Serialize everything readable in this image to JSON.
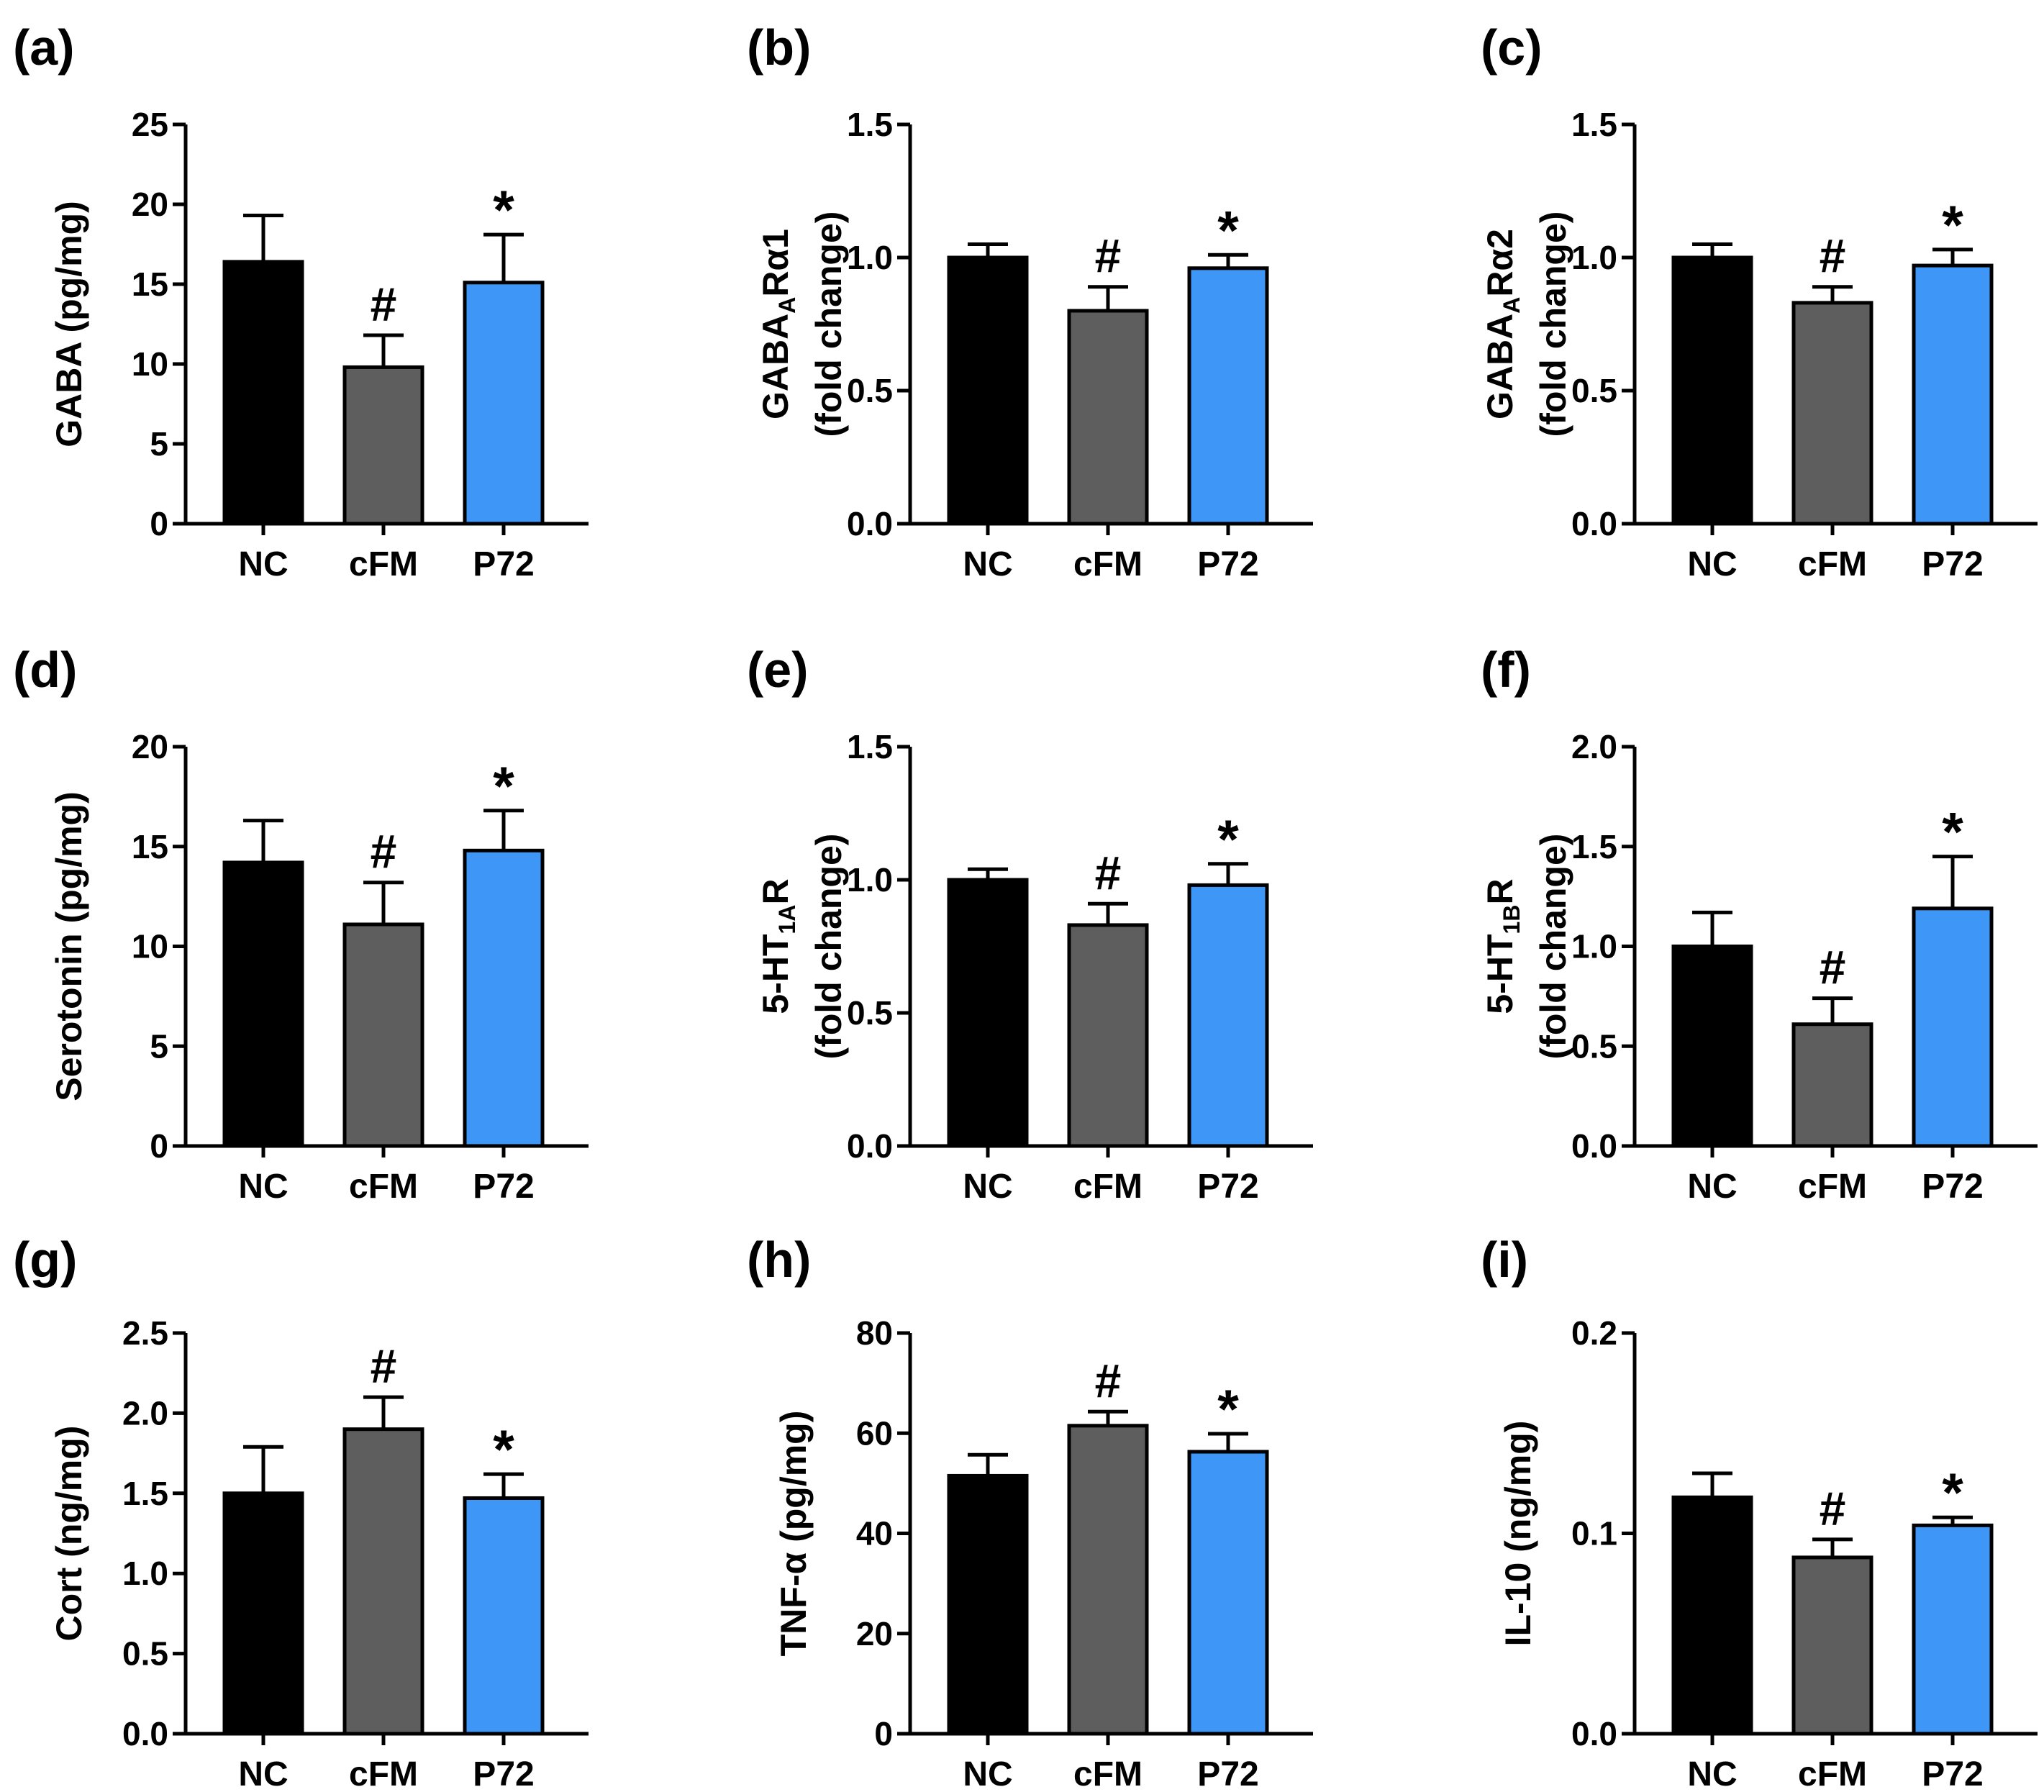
{
  "chart_data": [
    {
      "type": "bar",
      "panel": "(a)",
      "ylabel": [
        {
          "t": "GABA (pg/mg)"
        }
      ],
      "categories": [
        "NC",
        "cFM",
        "P72"
      ],
      "values": [
        16.4,
        9.8,
        15.1
      ],
      "errors": [
        2.9,
        2.0,
        3.0
      ],
      "significance": [
        "",
        "#",
        "*"
      ],
      "ylim": [
        0,
        25
      ],
      "yticks": [
        0,
        5,
        10,
        15,
        20,
        25
      ],
      "ytick_labels": [
        "0",
        "5",
        "10",
        "15",
        "20",
        "25"
      ],
      "colors": [
        "#000000",
        "#5e5e5e",
        "#3e96f7"
      ]
    },
    {
      "type": "bar",
      "panel": "(b)",
      "ylabel": [
        {
          "t": "GABA"
        },
        {
          "t": "A",
          "sub": true
        },
        {
          "t": "Rα1"
        }
      ],
      "ylabel2": "(fold change)",
      "categories": [
        "NC",
        "cFM",
        "P72"
      ],
      "values": [
        1.0,
        0.8,
        0.96
      ],
      "errors": [
        0.05,
        0.09,
        0.05
      ],
      "significance": [
        "",
        "#",
        "*"
      ],
      "ylim": [
        0,
        1.5
      ],
      "yticks": [
        0,
        0.5,
        1.0,
        1.5
      ],
      "ytick_labels": [
        "0.0",
        "0.5",
        "1.0",
        "1.5"
      ],
      "colors": [
        "#000000",
        "#5e5e5e",
        "#3e96f7"
      ]
    },
    {
      "type": "bar",
      "panel": "(c)",
      "ylabel": [
        {
          "t": "GABA"
        },
        {
          "t": "A",
          "sub": true
        },
        {
          "t": "Rα2"
        }
      ],
      "ylabel2": "(fold change)",
      "categories": [
        "NC",
        "cFM",
        "P72"
      ],
      "values": [
        1.0,
        0.83,
        0.97
      ],
      "errors": [
        0.05,
        0.06,
        0.06
      ],
      "significance": [
        "",
        "#",
        "*"
      ],
      "ylim": [
        0,
        1.5
      ],
      "yticks": [
        0,
        0.5,
        1.0,
        1.5
      ],
      "ytick_labels": [
        "0.0",
        "0.5",
        "1.0",
        "1.5"
      ],
      "colors": [
        "#000000",
        "#5e5e5e",
        "#3e96f7"
      ]
    },
    {
      "type": "bar",
      "panel": "(d)",
      "ylabel": [
        {
          "t": "Serotonin (pg/mg)"
        }
      ],
      "categories": [
        "NC",
        "cFM",
        "P72"
      ],
      "values": [
        14.2,
        11.1,
        14.8
      ],
      "errors": [
        2.1,
        2.1,
        2.0
      ],
      "significance": [
        "",
        "#",
        "*"
      ],
      "ylim": [
        0,
        20
      ],
      "yticks": [
        0,
        5,
        10,
        15,
        20
      ],
      "ytick_labels": [
        "0",
        "5",
        "10",
        "15",
        "20"
      ],
      "colors": [
        "#000000",
        "#5e5e5e",
        "#3e96f7"
      ]
    },
    {
      "type": "bar",
      "panel": "(e)",
      "ylabel": [
        {
          "t": "5-HT"
        },
        {
          "t": "1A",
          "sub": true
        },
        {
          "t": "R"
        }
      ],
      "ylabel2": "(fold change)",
      "categories": [
        "NC",
        "cFM",
        "P72"
      ],
      "values": [
        1.0,
        0.83,
        0.98
      ],
      "errors": [
        0.04,
        0.08,
        0.08
      ],
      "significance": [
        "",
        "#",
        "*"
      ],
      "ylim": [
        0,
        1.5
      ],
      "yticks": [
        0,
        0.5,
        1.0,
        1.5
      ],
      "ytick_labels": [
        "0.0",
        "0.5",
        "1.0",
        "1.5"
      ],
      "colors": [
        "#000000",
        "#5e5e5e",
        "#3e96f7"
      ]
    },
    {
      "type": "bar",
      "panel": "(f)",
      "ylabel": [
        {
          "t": "5-HT"
        },
        {
          "t": "1B",
          "sub": true
        },
        {
          "t": "R"
        }
      ],
      "ylabel2": "(fold change)",
      "categories": [
        "NC",
        "cFM",
        "P72"
      ],
      "values": [
        1.0,
        0.61,
        1.19
      ],
      "errors": [
        0.17,
        0.13,
        0.26
      ],
      "significance": [
        "",
        "#",
        "*"
      ],
      "ylim": [
        0,
        2.0
      ],
      "yticks": [
        0,
        0.5,
        1.0,
        1.5,
        2.0
      ],
      "ytick_labels": [
        "0.0",
        "0.5",
        "1.0",
        "1.5",
        "2.0"
      ],
      "colors": [
        "#000000",
        "#5e5e5e",
        "#3e96f7"
      ]
    },
    {
      "type": "bar",
      "panel": "(g)",
      "ylabel": [
        {
          "t": "Cort (ng/mg)"
        }
      ],
      "categories": [
        "NC",
        "cFM",
        "P72"
      ],
      "values": [
        1.5,
        1.9,
        1.47
      ],
      "errors": [
        0.29,
        0.2,
        0.15
      ],
      "significance": [
        "",
        "#",
        "*"
      ],
      "ylim": [
        0,
        2.5
      ],
      "yticks": [
        0,
        0.5,
        1.0,
        1.5,
        2.0,
        2.5
      ],
      "ytick_labels": [
        "0.0",
        "0.5",
        "1.0",
        "1.5",
        "2.0",
        "2.5"
      ],
      "colors": [
        "#000000",
        "#5e5e5e",
        "#3e96f7"
      ]
    },
    {
      "type": "bar",
      "panel": "(h)",
      "ylabel": [
        {
          "t": "TNF-α (pg/mg)"
        }
      ],
      "categories": [
        "NC",
        "cFM",
        "P72"
      ],
      "values": [
        51.5,
        61.5,
        56.3
      ],
      "errors": [
        4.2,
        2.8,
        3.6
      ],
      "significance": [
        "",
        "#",
        "*"
      ],
      "ylim": [
        0,
        80
      ],
      "yticks": [
        0,
        20,
        40,
        60,
        80
      ],
      "ytick_labels": [
        "0",
        "20",
        "40",
        "60",
        "80"
      ],
      "colors": [
        "#000000",
        "#5e5e5e",
        "#3e96f7"
      ]
    },
    {
      "type": "bar",
      "panel": "(i)",
      "ylabel": [
        {
          "t": "IL-10 (ng/mg)"
        }
      ],
      "categories": [
        "NC",
        "cFM",
        "P72"
      ],
      "values": [
        0.118,
        0.088,
        0.104
      ],
      "errors": [
        0.012,
        0.009,
        0.004
      ],
      "significance": [
        "",
        "#",
        "*"
      ],
      "ylim": [
        0,
        0.2
      ],
      "yticks": [
        0,
        0.1,
        0.2
      ],
      "ytick_labels": [
        "0.0",
        "0.1",
        "0.2"
      ],
      "colors": [
        "#000000",
        "#5e5e5e",
        "#3e96f7"
      ]
    }
  ]
}
